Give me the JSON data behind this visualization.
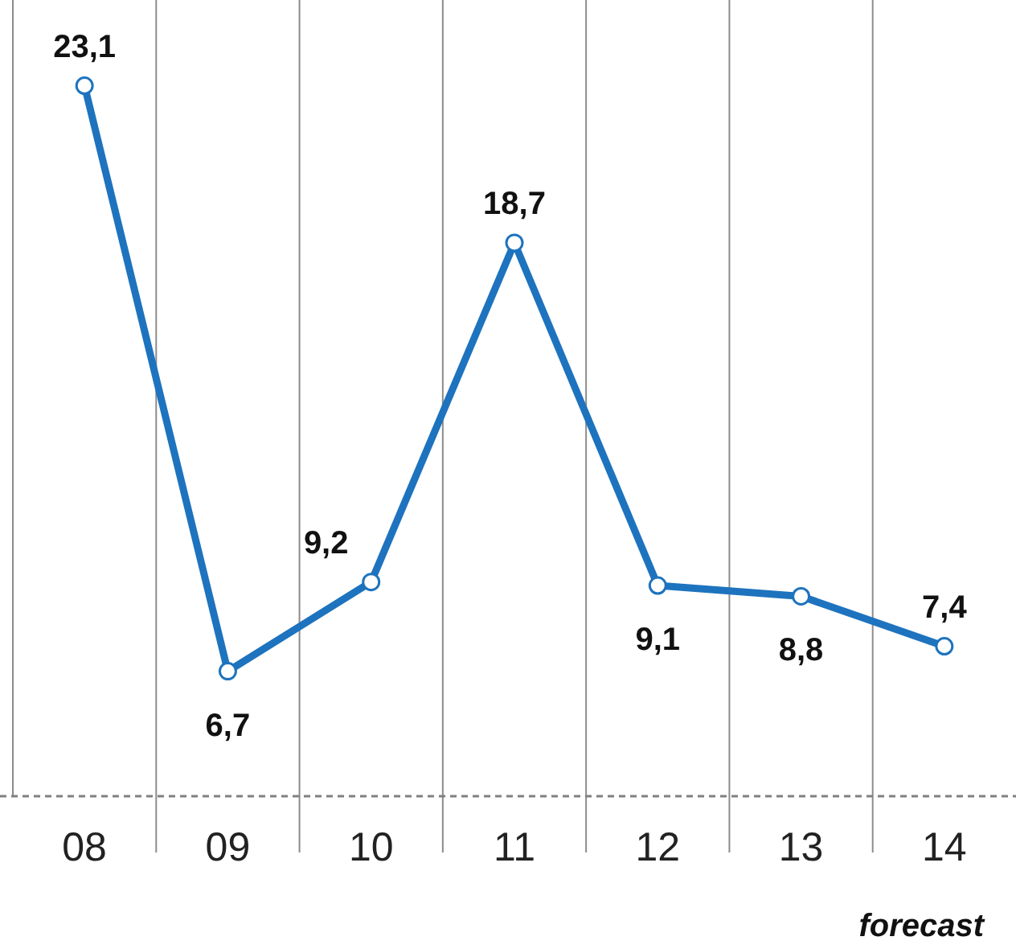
{
  "chart_data": {
    "type": "line",
    "categories": [
      "08",
      "09",
      "10",
      "11",
      "12",
      "13",
      "14"
    ],
    "values": [
      23.1,
      6.7,
      9.2,
      18.7,
      9.1,
      8.8,
      7.4
    ],
    "value_labels": [
      "23,1",
      "6,7",
      "9,2",
      "18,7",
      "9,1",
      "8,8",
      "7,4"
    ],
    "color": "#1e73be",
    "ylim": [
      3.2,
      25.5
    ],
    "tick_labels": "x",
    "grid": "x",
    "marker": "circle",
    "line_style": "solid",
    "annotations": [
      "forecast"
    ]
  }
}
